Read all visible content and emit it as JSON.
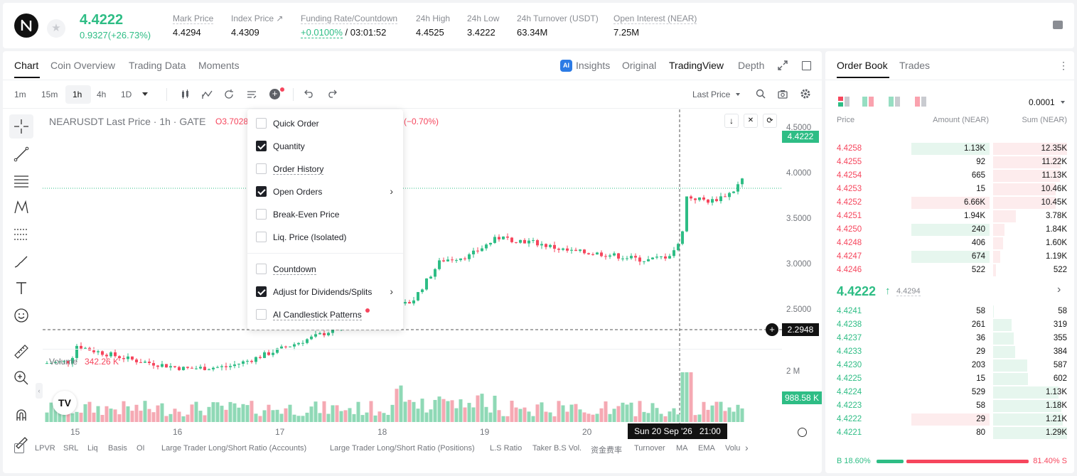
{
  "header": {
    "symbol_logo": "N",
    "last_price": "4.4222",
    "change": "0.9327(+26.73%)",
    "stats": [
      {
        "label": "Mark Price",
        "value": "4.4294"
      },
      {
        "label": "Index Price ↗",
        "value": "4.4309"
      },
      {
        "label": "Funding Rate/Countdown",
        "value": "+0.0100%",
        "value2": " / 03:01:52"
      },
      {
        "label": "24h High",
        "value": "4.4525"
      },
      {
        "label": "24h Low",
        "value": "3.4222"
      },
      {
        "label": "24h Turnover (USDT)",
        "value": "63.34M"
      },
      {
        "label": "Open Interest (NEAR)",
        "value": "7.25M"
      }
    ]
  },
  "chart_tabs": [
    "Chart",
    "Coin Overview",
    "Trading Data",
    "Moments"
  ],
  "view_tabs": {
    "insights": "Insights",
    "original": "Original",
    "tradingview": "TradingView",
    "depth": "Depth"
  },
  "intervals": [
    "1m",
    "15m",
    "1h",
    "4h",
    "1D"
  ],
  "price_type": "Last Price",
  "chart": {
    "legend": "NEARUSDT Last Price · 1h · GATE",
    "legend_o": "O3.7028",
    "legend_chg": "(−0.70%)",
    "last_price_tag": "4.4222",
    "crosshair_price": "2.2948",
    "volume_label": "Volume",
    "volume_value": "342.26 K",
    "volume_tag": "988.58 K",
    "crosshair_time": "Sun 20 Sep '26   21:00"
  },
  "chart_data": {
    "type": "candlestick",
    "x_ticks": [
      "15",
      "16",
      "17",
      "18",
      "19",
      "20"
    ],
    "y_ticks": [
      "4.5000",
      "4.0000",
      "3.5000",
      "3.0000",
      "2.5000"
    ],
    "volume_ticks": [
      "2 M"
    ],
    "ylim": [
      2.2,
      4.6
    ]
  },
  "dropdown": [
    {
      "label": "Quick Order",
      "checked": false,
      "arrow": false
    },
    {
      "label": "Quantity",
      "checked": true,
      "arrow": false
    },
    {
      "label": "Order History",
      "checked": false,
      "arrow": false
    },
    {
      "label": "Open Orders",
      "checked": true,
      "arrow": true
    },
    {
      "label": "Break-Even Price",
      "checked": false,
      "arrow": false
    },
    {
      "label": "Liq. Price (Isolated)",
      "checked": false,
      "arrow": false
    },
    {
      "label": "Countdown",
      "checked": false,
      "arrow": false
    },
    {
      "label": "Adjust for Dividends/Splits",
      "checked": true,
      "arrow": true
    },
    {
      "label": "AI Candlestick Patterns",
      "checked": false,
      "arrow": false
    }
  ],
  "indicators": [
    "LPVR",
    "SRL",
    "Liq",
    "Basis",
    "OI",
    "Large Trader Long/Short Ratio (Accounts)",
    "Large Trader Long/Short Ratio (Positions)",
    "L.S Ratio",
    "Taker B.S Vol.",
    "资金费率",
    "Turnover",
    "MA",
    "EMA",
    "Volu"
  ],
  "orderbook": {
    "tabs": [
      "Order Book",
      "Trades"
    ],
    "precision": "0.0001",
    "cols": [
      "Price",
      "Amount (NEAR)",
      "Sum (NEAR)"
    ],
    "asks": [
      {
        "p": "4.4258",
        "a": "1.13K",
        "s": "12.35K",
        "af": 0.17,
        "sf": 1.0
      },
      {
        "p": "4.4255",
        "a": "92",
        "s": "11.22K",
        "af": 0.0,
        "sf": 0.91
      },
      {
        "p": "4.4254",
        "a": "665",
        "s": "11.13K",
        "af": 0.0,
        "sf": 0.9
      },
      {
        "p": "4.4253",
        "a": "15",
        "s": "10.46K",
        "af": 0.0,
        "sf": 0.85
      },
      {
        "p": "4.4252",
        "a": "6.66K",
        "s": "10.45K",
        "af": 1.0,
        "sf": 0.85
      },
      {
        "p": "4.4251",
        "a": "1.94K",
        "s": "3.78K",
        "af": 0.0,
        "sf": 0.31
      },
      {
        "p": "4.4250",
        "a": "240",
        "s": "1.84K",
        "af": 1.0,
        "sf": 0.15
      },
      {
        "p": "4.4248",
        "a": "406",
        "s": "1.60K",
        "af": 0.0,
        "sf": 0.13
      },
      {
        "p": "4.4247",
        "a": "674",
        "s": "1.19K",
        "af": 1.0,
        "sf": 0.1
      },
      {
        "p": "4.4246",
        "a": "522",
        "s": "522",
        "af": 0.0,
        "sf": 0.04
      }
    ],
    "mid_price": "4.4222",
    "mid_mark": "4.4294",
    "bids": [
      {
        "p": "4.4241",
        "a": "58",
        "s": "58",
        "sf": 0.01
      },
      {
        "p": "4.4238",
        "a": "261",
        "s": "319",
        "sf": 0.25
      },
      {
        "p": "4.4237",
        "a": "36",
        "s": "355",
        "sf": 0.28
      },
      {
        "p": "4.4233",
        "a": "29",
        "s": "384",
        "sf": 0.3
      },
      {
        "p": "4.4230",
        "a": "203",
        "s": "587",
        "sf": 0.46
      },
      {
        "p": "4.4225",
        "a": "15",
        "s": "602",
        "sf": 0.47
      },
      {
        "p": "4.4224",
        "a": "529",
        "s": "1.13K",
        "sf": 0.88
      },
      {
        "p": "4.4223",
        "a": "58",
        "s": "1.18K",
        "sf": 0.92
      },
      {
        "p": "4.4222",
        "a": "29",
        "s": "1.21K",
        "sf": 0.94,
        "sellbar": true
      },
      {
        "p": "4.4221",
        "a": "80",
        "s": "1.29K",
        "sf": 1.0
      }
    ],
    "buy_ratio": "B 18.60%",
    "sell_ratio": "81.40% S",
    "buy_pct": 18.6
  },
  "colors": {
    "up": "#2ebd85",
    "down": "#f6465d",
    "up_bg": "#e6f6ee",
    "down_bg": "#fdeced"
  }
}
